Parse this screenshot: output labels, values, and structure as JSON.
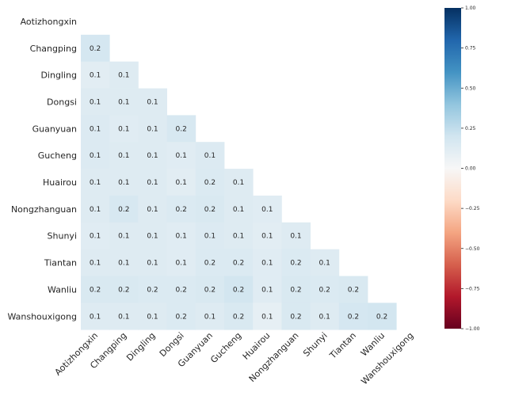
{
  "chart_data": {
    "type": "heatmap",
    "title": "",
    "xlabel": "",
    "ylabel": "",
    "stations": [
      "Aotizhongxin",
      "Changping",
      "Dingling",
      "Dongsi",
      "Guanyuan",
      "Gucheng",
      "Huairou",
      "Nongzhanguan",
      "Shunyi",
      "Tiantan",
      "Wanliu",
      "Wanshouxigong"
    ],
    "cell_values": [
      [],
      [
        0.2
      ],
      [
        0.1,
        0.1
      ],
      [
        0.1,
        0.1,
        0.1
      ],
      [
        0.1,
        0.1,
        0.1,
        0.2
      ],
      [
        0.1,
        0.1,
        0.1,
        0.1,
        0.1
      ],
      [
        0.1,
        0.1,
        0.1,
        0.1,
        0.2,
        0.1
      ],
      [
        0.1,
        0.2,
        0.1,
        0.2,
        0.2,
        0.1,
        0.1
      ],
      [
        0.1,
        0.1,
        0.1,
        0.1,
        0.1,
        0.1,
        0.1,
        0.1
      ],
      [
        0.1,
        0.1,
        0.1,
        0.1,
        0.2,
        0.2,
        0.1,
        0.2,
        0.1
      ],
      [
        0.2,
        0.2,
        0.2,
        0.2,
        0.2,
        0.2,
        0.1,
        0.2,
        0.2,
        0.2
      ],
      [
        0.1,
        0.1,
        0.1,
        0.2,
        0.1,
        0.2,
        0.1,
        0.2,
        0.1,
        0.2,
        0.2
      ]
    ],
    "cell_shade": [
      [],
      [
        0.18
      ],
      [
        0.11,
        0.13
      ],
      [
        0.13,
        0.13,
        0.13
      ],
      [
        0.14,
        0.12,
        0.13,
        0.17
      ],
      [
        0.14,
        0.13,
        0.13,
        0.12,
        0.14
      ],
      [
        0.13,
        0.13,
        0.13,
        0.11,
        0.15,
        0.13
      ],
      [
        0.13,
        0.17,
        0.13,
        0.15,
        0.16,
        0.13,
        0.12
      ],
      [
        0.12,
        0.13,
        0.13,
        0.12,
        0.14,
        0.13,
        0.11,
        0.13
      ],
      [
        0.13,
        0.13,
        0.13,
        0.12,
        0.15,
        0.15,
        0.12,
        0.15,
        0.13
      ],
      [
        0.16,
        0.16,
        0.15,
        0.15,
        0.16,
        0.19,
        0.12,
        0.16,
        0.15,
        0.16
      ],
      [
        0.13,
        0.13,
        0.13,
        0.15,
        0.13,
        0.16,
        0.09,
        0.16,
        0.13,
        0.18,
        0.19
      ]
    ],
    "colorbar": {
      "vmin": -1.0,
      "vmax": 1.0,
      "ticks": [
        1.0,
        0.75,
        0.5,
        0.25,
        0.0,
        -0.25,
        -0.5,
        -0.75,
        -1.0
      ],
      "tick_labels": [
        "1.00",
        "0.75",
        "0.50",
        "0.25",
        "0.00",
        "−0.25",
        "−0.50",
        "−0.75",
        "−1.00"
      ],
      "colormap": "RdBu"
    },
    "grid": false,
    "legend": "colorbar-right"
  }
}
